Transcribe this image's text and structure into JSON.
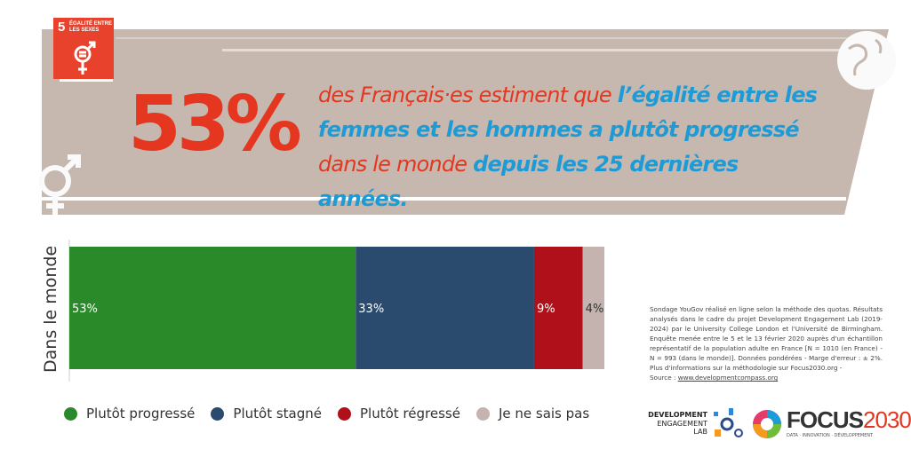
{
  "sdg_badge": {
    "number": "5",
    "label": "ÉGALITÉ ENTRE LES SEXES",
    "icon": "gender-equality-icon",
    "color": "#e8412c"
  },
  "headline": {
    "big_number": "53%",
    "part1": "des Français·es estiment que ",
    "part2": "l’égalité entre les femmes et les hommes a plutôt progressé",
    "part3": " dans le monde ",
    "part4": "depuis les 25 dernières années."
  },
  "chart_data": {
    "type": "bar",
    "orientation": "horizontal",
    "stacked": true,
    "categories": [
      "Dans le monde"
    ],
    "ylabel": "Dans le monde",
    "xlim": [
      0,
      100
    ],
    "series": [
      {
        "name": "Plutôt progressé",
        "values": [
          53
        ],
        "label": "53%",
        "color": "#2a8a2a"
      },
      {
        "name": "Plutôt stagné",
        "values": [
          33
        ],
        "label": "33%",
        "color": "#2a4a6e"
      },
      {
        "name": "Plutôt régressé",
        "values": [
          9
        ],
        "label": "9%",
        "color": "#b0101a"
      },
      {
        "name": "Je ne sais pas",
        "values": [
          4
        ],
        "label": "4%",
        "color": "#c4b3ae"
      }
    ],
    "legend": "bottom"
  },
  "note": {
    "text": "Sondage YouGov réalisé en ligne selon la méthode des quotas. Résultats analysés dans le cadre du projet Development Engagement Lab (2019-2024) par le University College London et l'Université de Birmingham. Enquête menée entre le 5 et le 13 février 2020 auprès d'un échantillon représentatif de la population adulte en France [N = 1010 (en France) - N = 993 (dans le monde)]. Données pondérées - Marge d'erreur : ± 2%. Plus d'informations sur la méthodologie sur Focus2030.org -",
    "source_label": "Source : ",
    "source_link": "www.developmentcompass.org"
  },
  "logos": {
    "del_line1": "DEVELOPMENT",
    "del_line2": "ENGAGEMENT",
    "del_line3": "LAB",
    "focus_a": "FOCUS",
    "focus_b": "2030",
    "focus_tag": "DATA · INNOVATION · DÉVELOPPEMENT"
  }
}
